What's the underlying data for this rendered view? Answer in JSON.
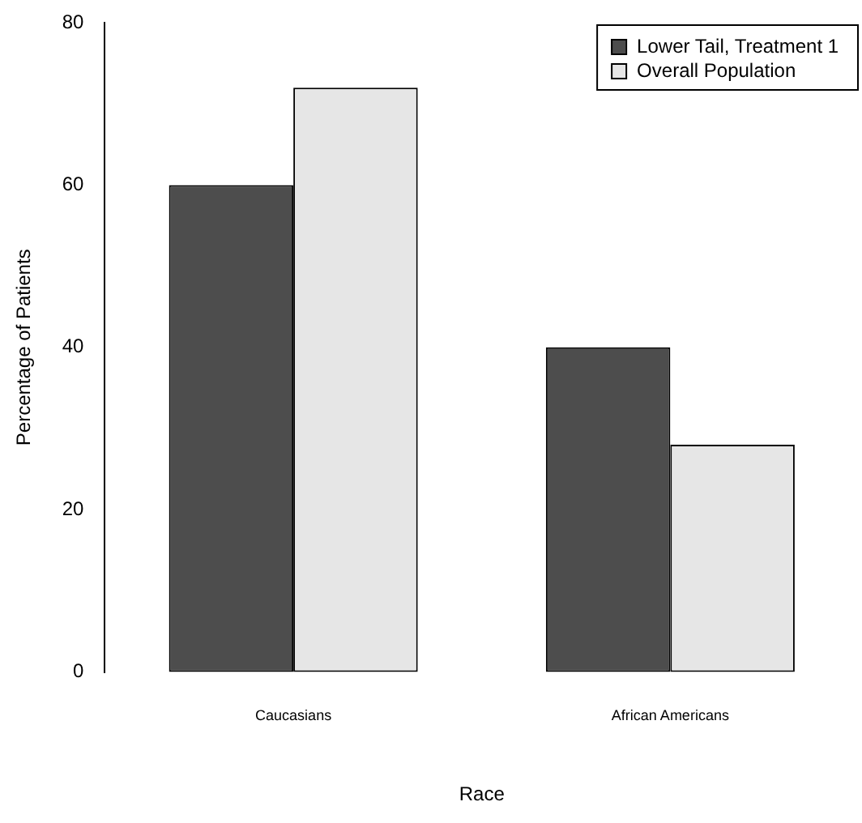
{
  "chart_data": {
    "type": "bar",
    "xlabel": "Race",
    "ylabel": "Percentage of Patients",
    "categories": [
      "Caucasians",
      "African Americans"
    ],
    "series": [
      {
        "name": "Lower Tail, Treatment 1",
        "color": "#4d4d4d",
        "values": [
          60,
          40
        ]
      },
      {
        "name": "Overall Population",
        "color": "#e6e6e6",
        "values": [
          72,
          28
        ]
      }
    ],
    "ylim": [
      0,
      80
    ],
    "yticks": [
      0,
      20,
      40,
      60,
      80
    ],
    "grid": false,
    "legend": "top right"
  }
}
